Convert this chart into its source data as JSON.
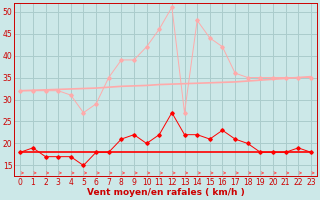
{
  "x": [
    0,
    1,
    2,
    3,
    4,
    5,
    6,
    7,
    8,
    9,
    10,
    11,
    12,
    13,
    14,
    15,
    16,
    17,
    18,
    19,
    20,
    21,
    22,
    23
  ],
  "series_rafales": [
    32,
    32,
    32,
    32,
    31,
    27,
    29,
    35,
    39,
    39,
    42,
    46,
    51,
    27,
    48,
    44,
    42,
    36,
    35,
    35,
    35,
    35,
    35,
    35
  ],
  "series_moyen": [
    18,
    19,
    17,
    17,
    17,
    15,
    18,
    18,
    21,
    22,
    20,
    22,
    27,
    22,
    22,
    21,
    23,
    21,
    20,
    18,
    18,
    18,
    19,
    18
  ],
  "series_trend_rafales": [
    32,
    32.1,
    32.2,
    32.3,
    32.4,
    32.5,
    32.6,
    32.8,
    33.0,
    33.1,
    33.2,
    33.4,
    33.5,
    33.6,
    33.7,
    33.8,
    33.9,
    34.0,
    34.2,
    34.4,
    34.6,
    34.8,
    35.0,
    35.2
  ],
  "series_trend_moyen": [
    18,
    18,
    18,
    18,
    18,
    18,
    18,
    18,
    18,
    18,
    18,
    18,
    18,
    18,
    18,
    18,
    18,
    18,
    18,
    18,
    18,
    18,
    18,
    18
  ],
  "color_rafales_line": "#ffaaaa",
  "color_moyen_line": "#ff0000",
  "color_trend_rafales": "#ffaaaa",
  "color_trend_moyen": "#ff0000",
  "color_arrows": "#ff5555",
  "bg_color": "#cce8e8",
  "grid_color": "#aacccc",
  "xlabel": "Vent moyen/en rafales ( km/h )",
  "ylim": [
    12.5,
    52
  ],
  "xlim": [
    -0.5,
    23.5
  ],
  "yticks": [
    15,
    20,
    25,
    30,
    35,
    40,
    45,
    50
  ],
  "xticks": [
    0,
    1,
    2,
    3,
    4,
    5,
    6,
    7,
    8,
    9,
    10,
    11,
    12,
    13,
    14,
    15,
    16,
    17,
    18,
    19,
    20,
    21,
    22,
    23
  ],
  "tick_fontsize": 5.5,
  "xlabel_fontsize": 6.5
}
